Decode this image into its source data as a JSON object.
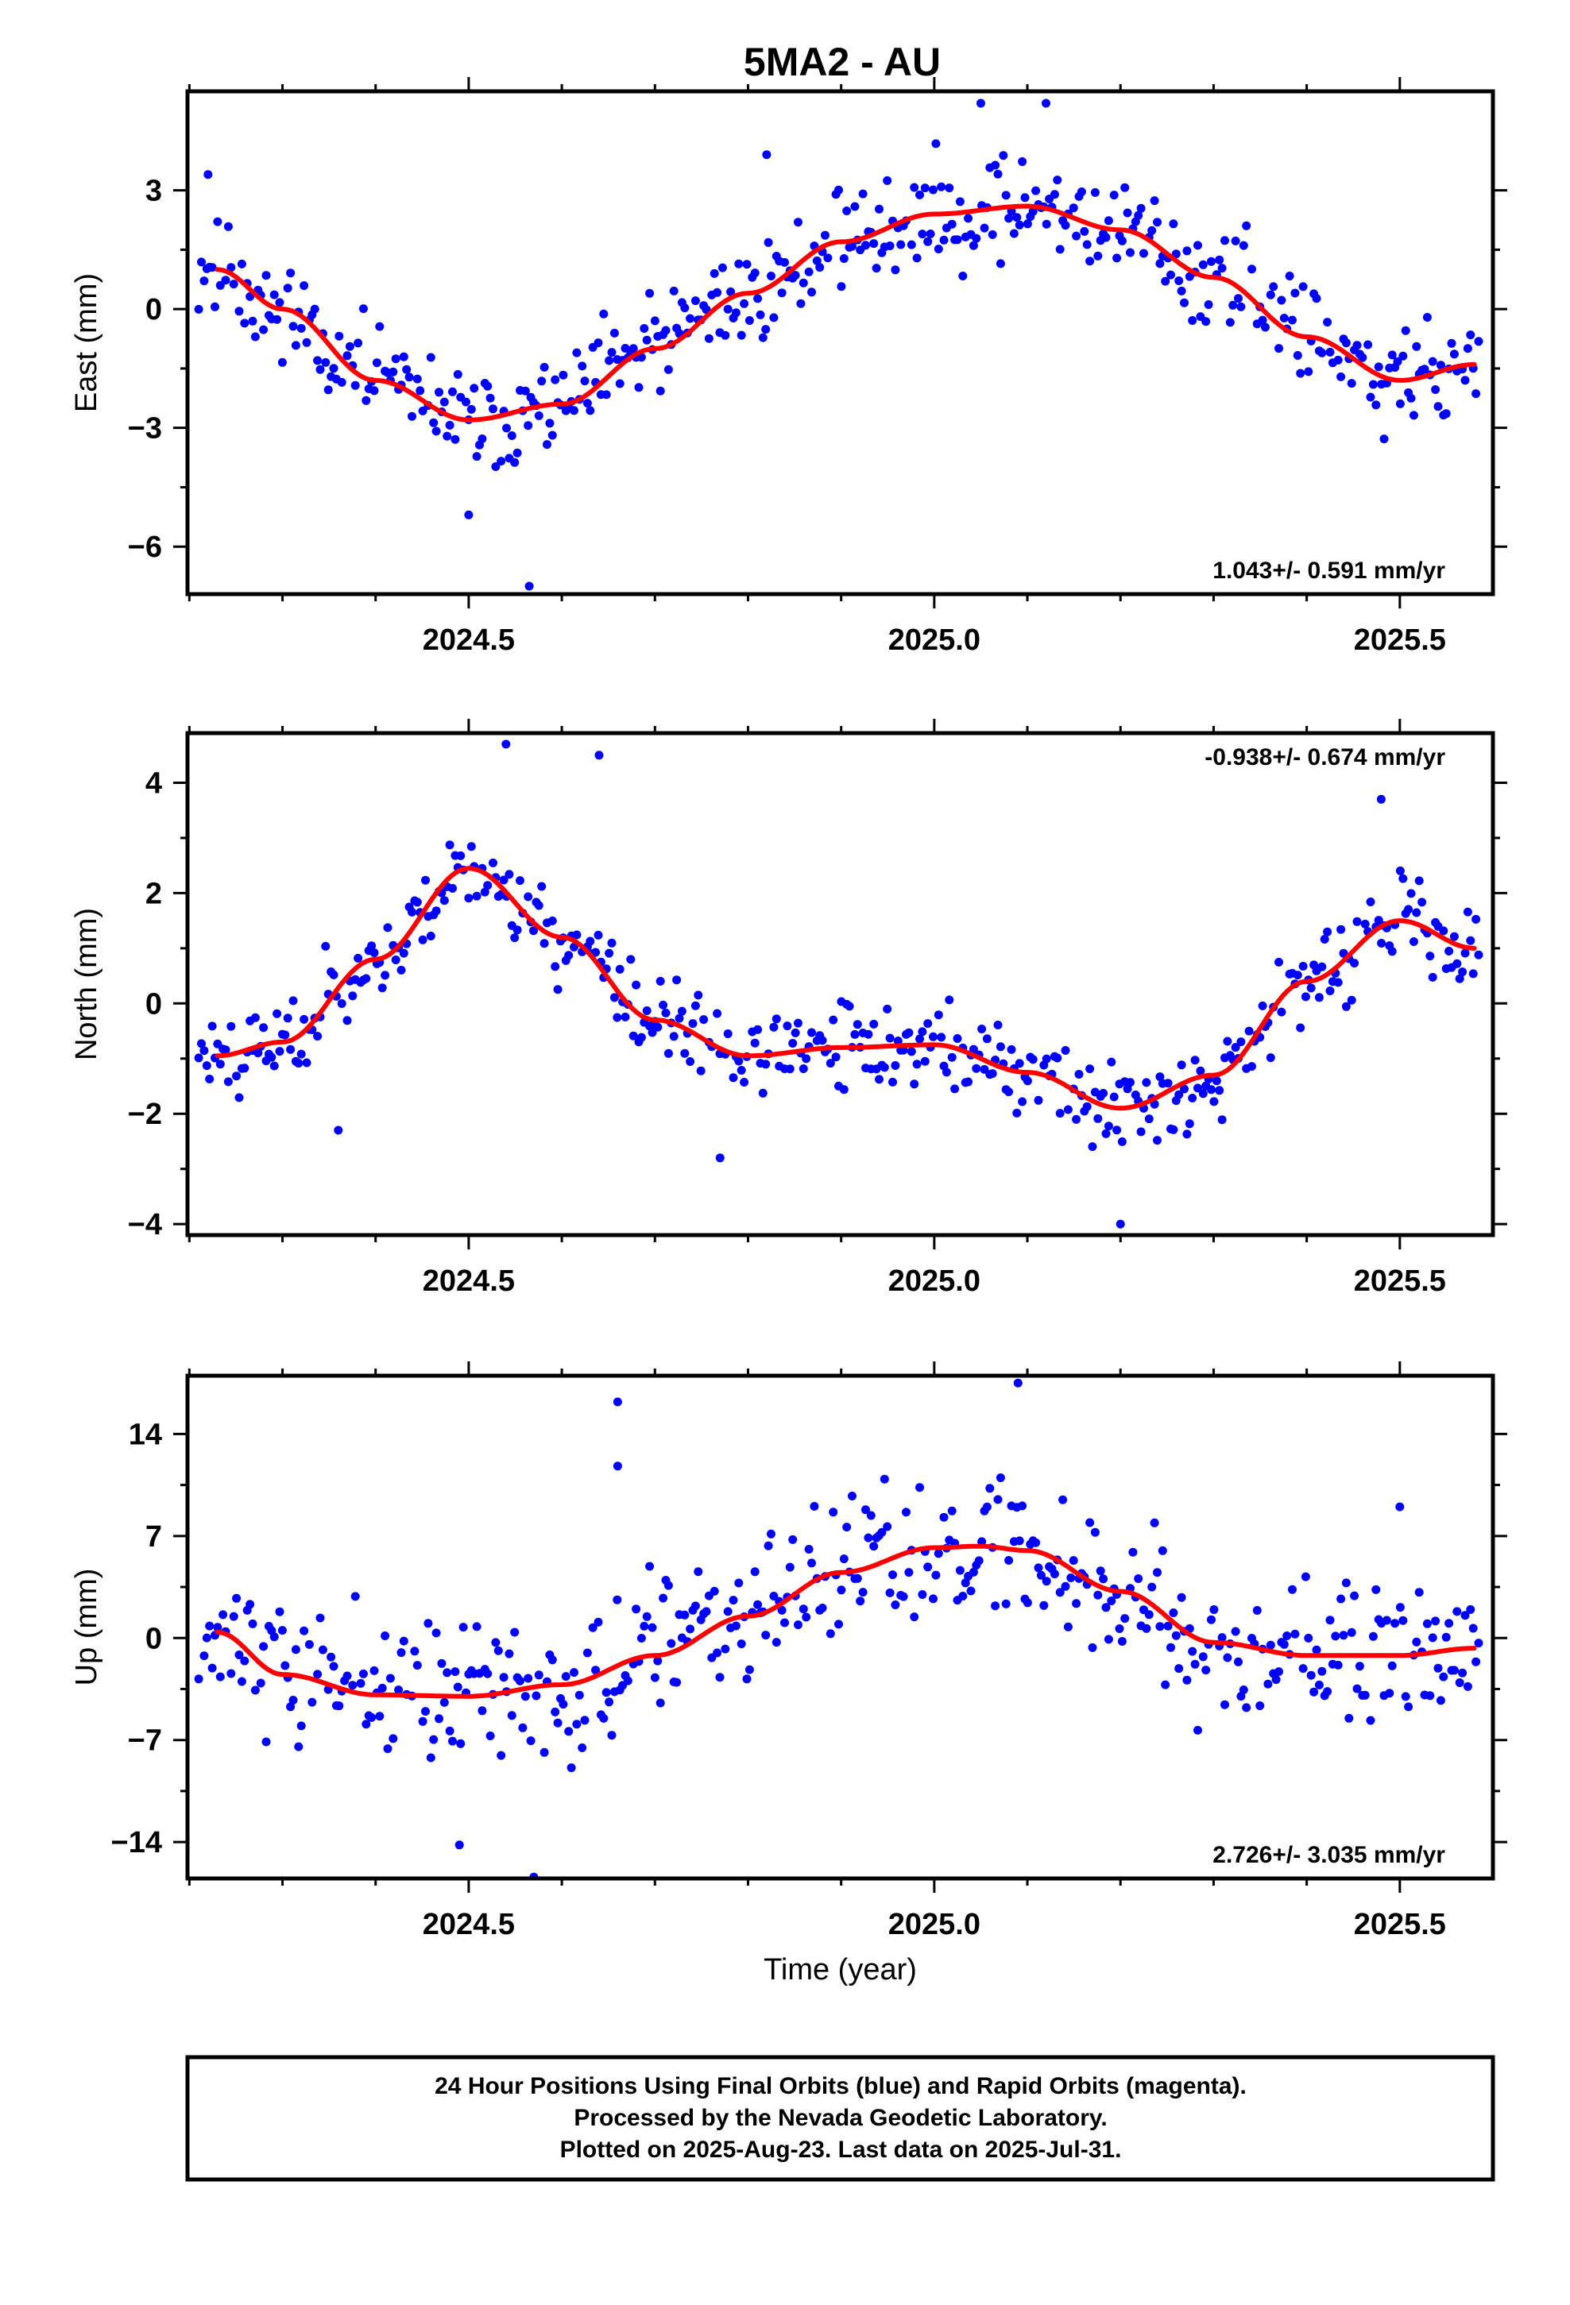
{
  "title": "5MA2 - AU",
  "colors": {
    "final_points": "#0000ff",
    "fit": "#ff0000",
    "frame": "#000000"
  },
  "footer": {
    "line1": "24 Hour Positions Using Final Orbits (blue) and Rapid Orbits (magenta).",
    "line2": "Processed by the Nevada Geodetic Laboratory.",
    "line3": "Plotted on 2025-Aug-23. Last data on 2025-Jul-31."
  },
  "chart_data": [
    {
      "type": "scatter",
      "title": "5MA2 - AU",
      "xlabel": "",
      "ylabel": "East (mm)",
      "xlim": [
        2024.198,
        2025.6
      ],
      "ylim": [
        -7.2,
        5.5
      ],
      "x_ticks": [
        "2024.5",
        "2025.0",
        "2025.5"
      ],
      "y_ticks": [
        "3",
        "0",
        "-3",
        "-6"
      ],
      "rate_text": "1.043+/- 0.591 mm/yr",
      "fit_curve": {
        "x": [
          2024.23,
          2024.3,
          2024.4,
          2024.5,
          2024.6,
          2024.7,
          2024.8,
          2024.9,
          2025.0,
          2025.1,
          2025.2,
          2025.3,
          2025.4,
          2025.5,
          2025.58
        ],
        "y": [
          1.0,
          0.0,
          -1.8,
          -2.8,
          -2.4,
          -1.0,
          0.4,
          1.7,
          2.4,
          2.6,
          2.0,
          0.8,
          -0.7,
          -1.8,
          -1.4
        ]
      },
      "points_note": "",
      "points_generated": {
        "seed": 11,
        "spread": 0.9,
        "outliers": [
          [
            2024.5,
            -5.2
          ],
          [
            2024.565,
            -7.0
          ],
          [
            2025.05,
            5.2
          ],
          [
            2024.22,
            3.4
          ],
          [
            2024.82,
            3.9
          ],
          [
            2025.12,
            5.2
          ]
        ]
      }
    },
    {
      "type": "scatter",
      "xlabel": "",
      "ylabel": "North (mm)",
      "xlim": [
        2024.198,
        2025.6
      ],
      "ylim": [
        -4.2,
        4.9
      ],
      "x_ticks": [
        "2024.5",
        "2025.0",
        "2025.5"
      ],
      "y_ticks": [
        "4",
        "2",
        "0",
        "-2",
        "-4"
      ],
      "rate_text": "-0.938+/- 0.674 mm/yr",
      "fit_curve": {
        "x": [
          2024.23,
          2024.3,
          2024.4,
          2024.5,
          2024.6,
          2024.7,
          2024.8,
          2024.9,
          2025.0,
          2025.1,
          2025.2,
          2025.3,
          2025.4,
          2025.5,
          2025.58
        ],
        "y": [
          -0.95,
          -0.7,
          0.8,
          2.45,
          1.2,
          -0.3,
          -0.95,
          -0.8,
          -0.75,
          -1.25,
          -1.9,
          -1.3,
          0.4,
          1.5,
          1.0
        ]
      },
      "points_generated": {
        "seed": 23,
        "spread": 0.55,
        "outliers": [
          [
            2024.54,
            4.7
          ],
          [
            2024.64,
            4.5
          ],
          [
            2024.36,
            -2.3
          ],
          [
            2025.2,
            -4.0
          ],
          [
            2024.77,
            -2.8
          ],
          [
            2025.48,
            3.7
          ]
        ]
      }
    },
    {
      "type": "scatter",
      "xlabel": "Time (year)",
      "ylabel": "Up (mm)",
      "xlim": [
        2024.198,
        2025.6
      ],
      "ylim": [
        -16.5,
        18.0
      ],
      "x_ticks": [
        "2024.5",
        "2025.0",
        "2025.5"
      ],
      "y_ticks": [
        "14",
        "7",
        "0",
        "-7",
        "-14"
      ],
      "rate_text": "2.726+/- 3.035 mm/yr",
      "fit_curve": {
        "x": [
          2024.23,
          2024.3,
          2024.4,
          2024.5,
          2024.6,
          2024.7,
          2024.8,
          2024.9,
          2025.0,
          2025.05,
          2025.1,
          2025.2,
          2025.3,
          2025.4,
          2025.5,
          2025.58
        ],
        "y": [
          0.4,
          -2.5,
          -3.9,
          -4.0,
          -3.2,
          -1.2,
          1.5,
          4.5,
          6.2,
          6.3,
          6.0,
          3.2,
          -0.3,
          -1.2,
          -1.2,
          -0.7
        ]
      },
      "points_generated": {
        "seed": 37,
        "spread": 3.4,
        "outliers": [
          [
            2024.66,
            16.2
          ],
          [
            2025.04,
            18.2
          ],
          [
            2025.09,
            17.5
          ],
          [
            2024.57,
            -16.4
          ],
          [
            2024.49,
            -14.2
          ],
          [
            2024.66,
            11.8
          ],
          [
            2025.5,
            9.0
          ]
        ]
      }
    }
  ]
}
